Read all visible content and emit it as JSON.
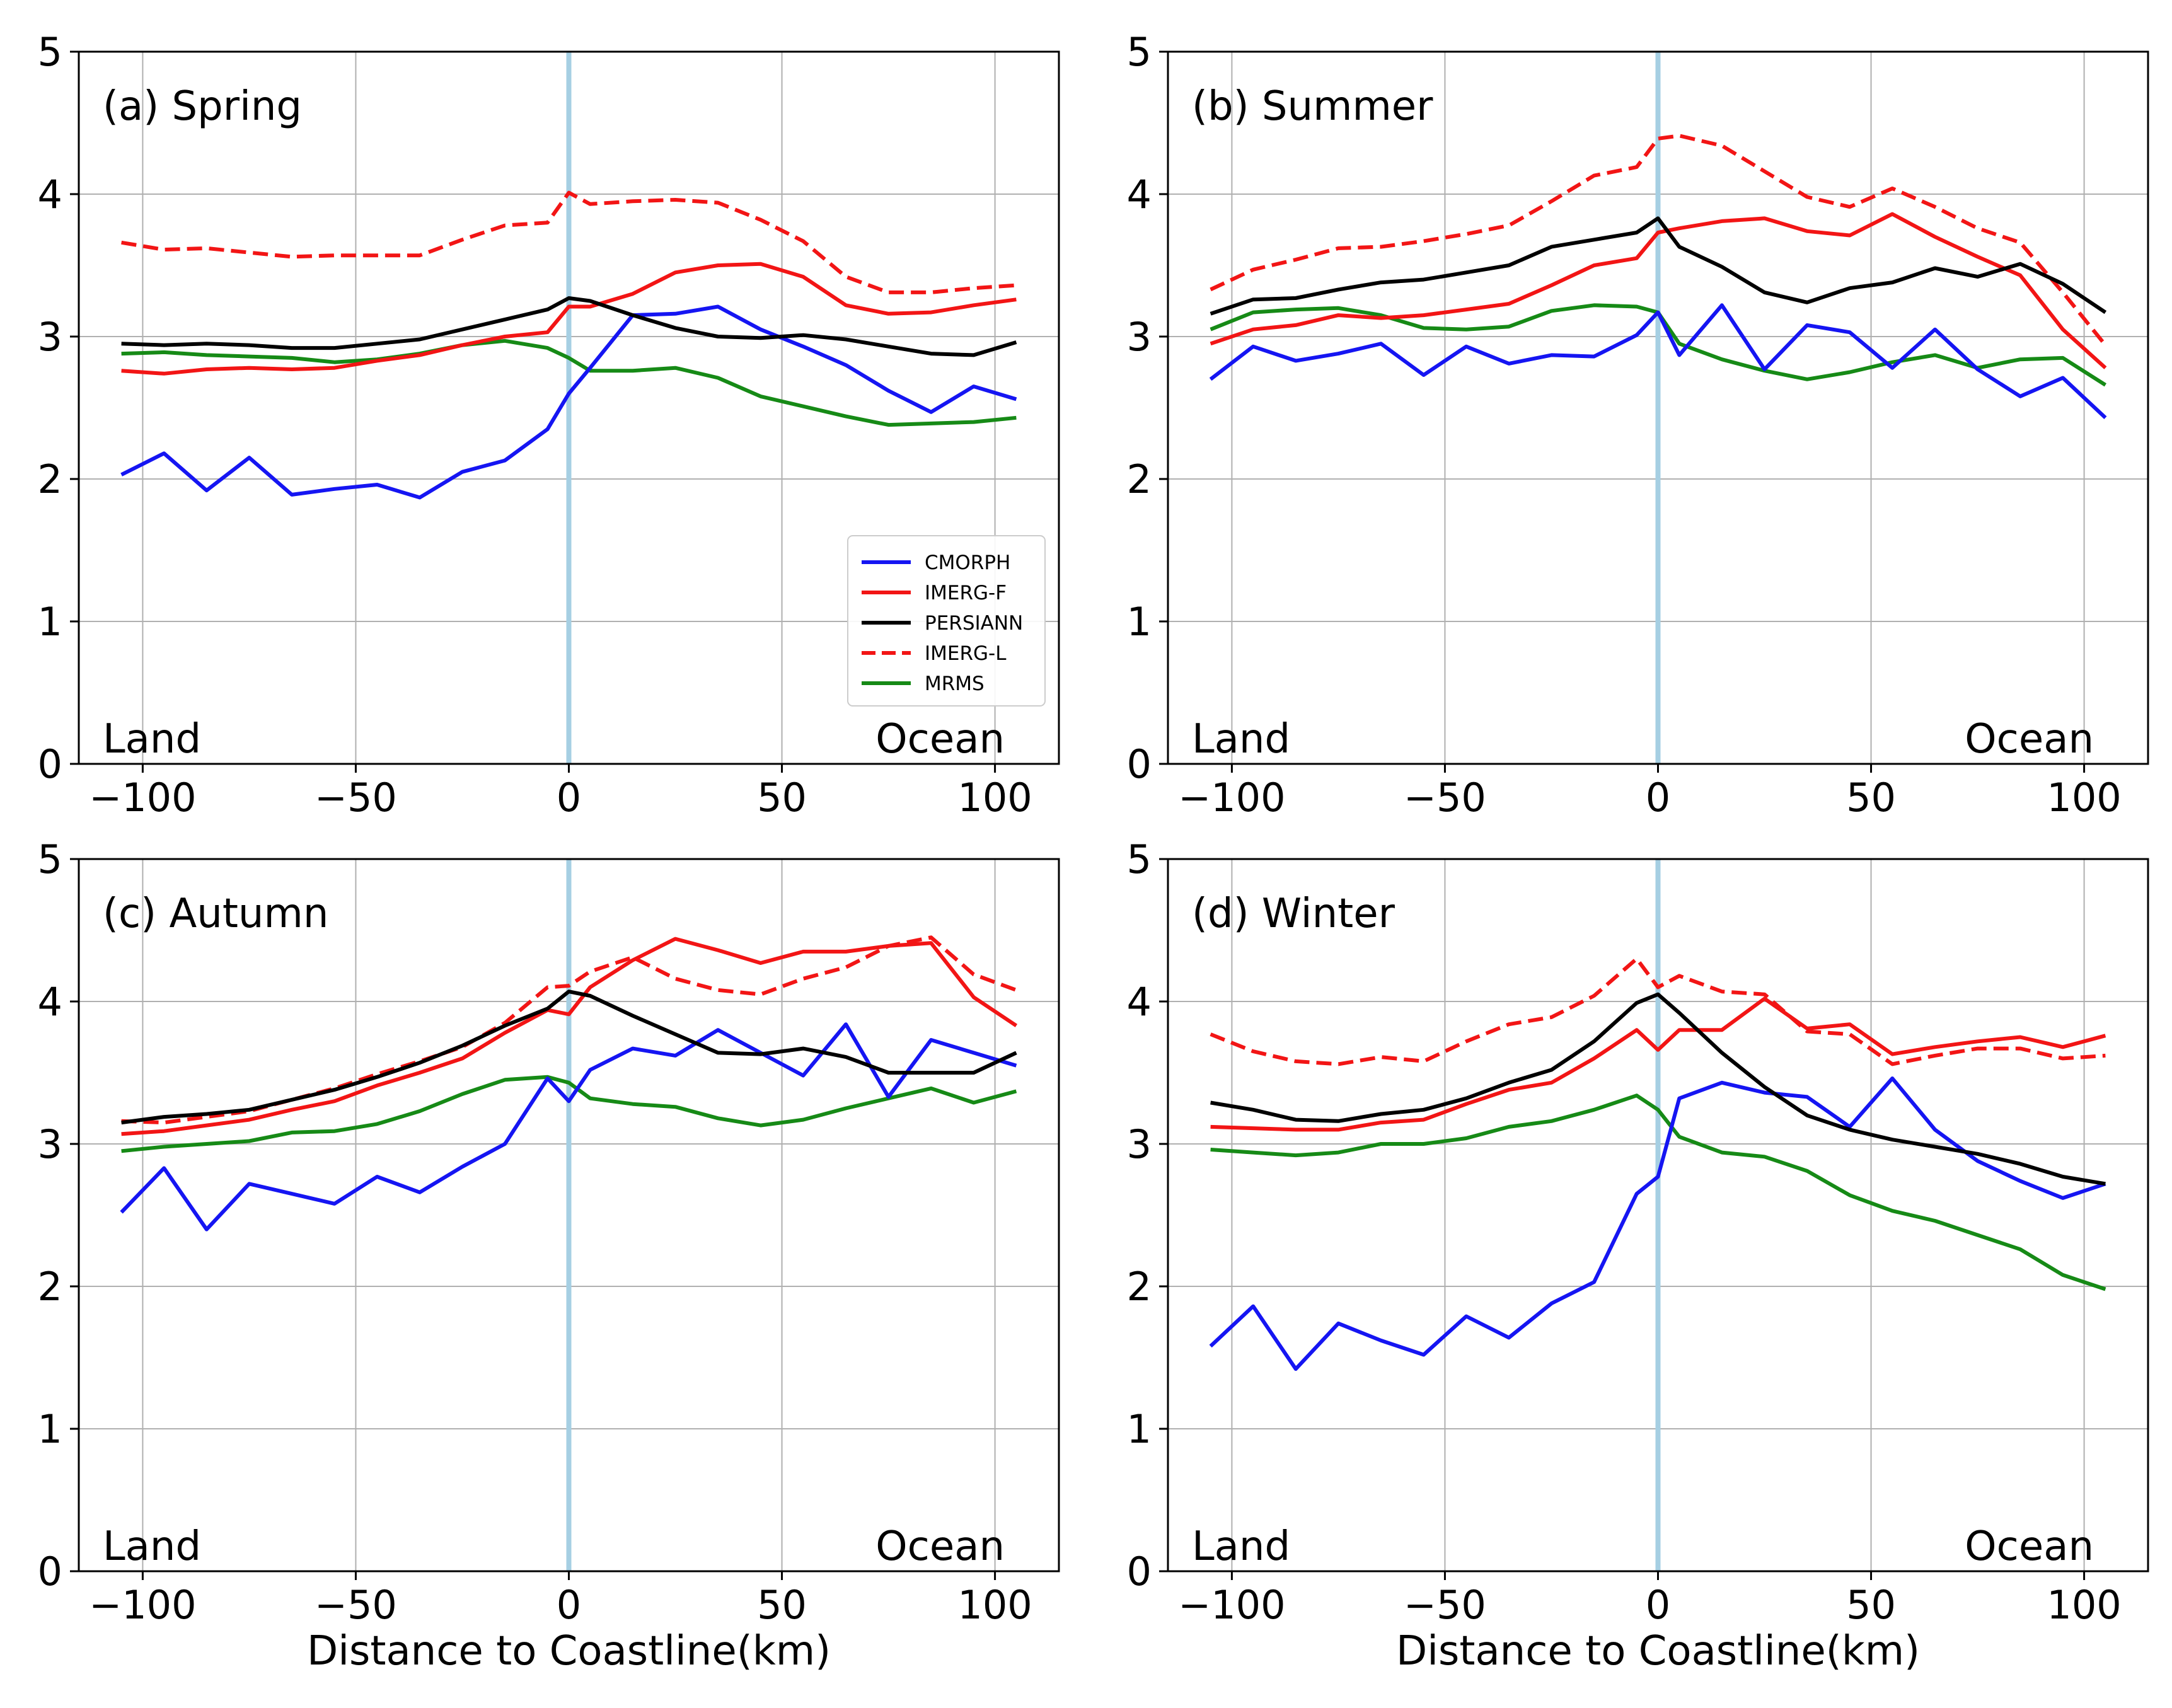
{
  "chart_data": [
    {
      "type": "line",
      "title": "(a) Spring",
      "xlabel": "",
      "ylabel": "",
      "xlim": [
        -115,
        115
      ],
      "ylim": [
        0,
        5
      ],
      "xticks": [
        "−100",
        "−50",
        "0",
        "50",
        "100"
      ],
      "yticks": [
        "0",
        "1",
        "2",
        "3",
        "4",
        "5"
      ],
      "land_label": "Land",
      "ocean_label": "Ocean",
      "x": [
        -105,
        -95,
        -85,
        -75,
        -65,
        -55,
        -45,
        -35,
        -25,
        -15,
        -5,
        0,
        5,
        15,
        25,
        35,
        45,
        55,
        65,
        75,
        85,
        95,
        105
      ],
      "series": [
        {
          "name": "CMORPH",
          "values": [
            2.03,
            2.18,
            1.92,
            2.15,
            1.89,
            1.93,
            1.96,
            1.87,
            2.05,
            2.13,
            2.35,
            2.6,
            2.78,
            3.15,
            3.16,
            3.21,
            3.05,
            2.93,
            2.8,
            2.62,
            2.47,
            2.65,
            2.56
          ]
        },
        {
          "name": "IMERG-F",
          "values": [
            2.76,
            2.74,
            2.77,
            2.78,
            2.77,
            2.78,
            2.83,
            2.87,
            2.94,
            3.0,
            3.03,
            3.21,
            3.21,
            3.3,
            3.45,
            3.5,
            3.51,
            3.42,
            3.22,
            3.16,
            3.17,
            3.22,
            3.26
          ]
        },
        {
          "name": "PERSIANN",
          "values": [
            2.95,
            2.94,
            2.95,
            2.94,
            2.92,
            2.92,
            2.95,
            2.98,
            3.05,
            3.12,
            3.19,
            3.27,
            3.25,
            3.15,
            3.06,
            3.0,
            2.99,
            3.01,
            2.98,
            2.93,
            2.88,
            2.87,
            2.96
          ]
        },
        {
          "name": "IMERG-L",
          "values": [
            3.66,
            3.61,
            3.62,
            3.59,
            3.56,
            3.57,
            3.57,
            3.57,
            3.68,
            3.78,
            3.8,
            4.01,
            3.93,
            3.95,
            3.96,
            3.94,
            3.82,
            3.67,
            3.42,
            3.31,
            3.31,
            3.34,
            3.36
          ]
        },
        {
          "name": "MRMS",
          "values": [
            2.88,
            2.89,
            2.87,
            2.86,
            2.85,
            2.82,
            2.84,
            2.88,
            2.94,
            2.97,
            2.92,
            2.85,
            2.76,
            2.76,
            2.78,
            2.71,
            2.58,
            2.51,
            2.44,
            2.38,
            2.39,
            2.4,
            2.43
          ]
        }
      ]
    },
    {
      "type": "line",
      "title": "(b) Summer",
      "xlabel": "",
      "ylabel": "",
      "xlim": [
        -115,
        115
      ],
      "ylim": [
        0,
        5
      ],
      "xticks": [
        "−100",
        "−50",
        "0",
        "50",
        "100"
      ],
      "yticks": [
        "0",
        "1",
        "2",
        "3",
        "4",
        "5"
      ],
      "land_label": "Land",
      "ocean_label": "Ocean",
      "x": [
        -105,
        -95,
        -85,
        -75,
        -65,
        -55,
        -45,
        -35,
        -25,
        -15,
        -5,
        0,
        5,
        15,
        25,
        35,
        45,
        55,
        65,
        75,
        85,
        95,
        105
      ],
      "series": [
        {
          "name": "CMORPH",
          "values": [
            2.7,
            2.93,
            2.83,
            2.88,
            2.95,
            2.73,
            2.93,
            2.81,
            2.87,
            2.86,
            3.01,
            3.17,
            2.87,
            3.22,
            2.77,
            3.08,
            3.03,
            2.78,
            3.05,
            2.77,
            2.58,
            2.71,
            2.43
          ]
        },
        {
          "name": "IMERG-F",
          "values": [
            2.95,
            3.05,
            3.08,
            3.15,
            3.13,
            3.15,
            3.19,
            3.23,
            3.36,
            3.5,
            3.55,
            3.73,
            3.76,
            3.81,
            3.83,
            3.74,
            3.71,
            3.86,
            3.7,
            3.56,
            3.43,
            3.05,
            2.78
          ]
        },
        {
          "name": "PERSIANN",
          "values": [
            3.16,
            3.26,
            3.27,
            3.33,
            3.38,
            3.4,
            3.45,
            3.5,
            3.63,
            3.68,
            3.73,
            3.83,
            3.63,
            3.49,
            3.31,
            3.24,
            3.34,
            3.38,
            3.48,
            3.42,
            3.51,
            3.37,
            3.17
          ]
        },
        {
          "name": "IMERG-L",
          "values": [
            3.33,
            3.47,
            3.54,
            3.62,
            3.63,
            3.67,
            3.72,
            3.78,
            3.95,
            4.13,
            4.19,
            4.39,
            4.41,
            4.34,
            4.16,
            3.98,
            3.91,
            4.04,
            3.91,
            3.76,
            3.66,
            3.31,
            2.94
          ]
        },
        {
          "name": "MRMS",
          "values": [
            3.05,
            3.17,
            3.19,
            3.2,
            3.15,
            3.06,
            3.05,
            3.07,
            3.18,
            3.22,
            3.21,
            3.17,
            2.95,
            2.84,
            2.76,
            2.7,
            2.75,
            2.82,
            2.87,
            2.78,
            2.84,
            2.85,
            2.66
          ]
        }
      ]
    },
    {
      "type": "line",
      "title": "(c) Autumn",
      "xlabel": "Distance to Coastline(km)",
      "ylabel": "",
      "xlim": [
        -115,
        115
      ],
      "ylim": [
        0,
        5
      ],
      "xticks": [
        "−100",
        "−50",
        "0",
        "50",
        "100"
      ],
      "yticks": [
        "0",
        "1",
        "2",
        "3",
        "4",
        "5"
      ],
      "land_label": "Land",
      "ocean_label": "Ocean",
      "x": [
        -105,
        -95,
        -85,
        -75,
        -65,
        -55,
        -45,
        -35,
        -25,
        -15,
        -5,
        0,
        5,
        15,
        25,
        35,
        45,
        55,
        65,
        75,
        85,
        95,
        105
      ],
      "series": [
        {
          "name": "CMORPH",
          "values": [
            2.52,
            2.83,
            2.4,
            2.72,
            2.65,
            2.58,
            2.77,
            2.66,
            2.84,
            3.0,
            3.46,
            3.3,
            3.52,
            3.67,
            3.62,
            3.8,
            3.64,
            3.48,
            3.84,
            3.33,
            3.73,
            3.64,
            3.55
          ]
        },
        {
          "name": "IMERG-F",
          "values": [
            3.07,
            3.09,
            3.13,
            3.17,
            3.24,
            3.3,
            3.41,
            3.5,
            3.6,
            3.78,
            3.94,
            3.91,
            4.1,
            4.29,
            4.44,
            4.36,
            4.27,
            4.35,
            4.35,
            4.39,
            4.41,
            4.03,
            3.83
          ]
        },
        {
          "name": "PERSIANN",
          "values": [
            3.15,
            3.19,
            3.21,
            3.24,
            3.31,
            3.38,
            3.47,
            3.57,
            3.69,
            3.83,
            3.95,
            4.07,
            4.04,
            3.9,
            3.77,
            3.64,
            3.63,
            3.67,
            3.61,
            3.5,
            3.5,
            3.5,
            3.64
          ]
        },
        {
          "name": "IMERG-L",
          "values": [
            3.16,
            3.15,
            3.19,
            3.23,
            3.31,
            3.39,
            3.49,
            3.58,
            3.68,
            3.85,
            4.1,
            4.11,
            4.21,
            4.31,
            4.16,
            4.08,
            4.05,
            4.16,
            4.24,
            4.39,
            4.45,
            4.19,
            4.08
          ]
        },
        {
          "name": "MRMS",
          "values": [
            2.95,
            2.98,
            3.0,
            3.02,
            3.08,
            3.09,
            3.14,
            3.23,
            3.35,
            3.45,
            3.47,
            3.43,
            3.32,
            3.28,
            3.26,
            3.18,
            3.13,
            3.17,
            3.25,
            3.32,
            3.39,
            3.29,
            3.37
          ]
        }
      ]
    },
    {
      "type": "line",
      "title": "(d) Winter",
      "xlabel": "Distance to Coastline(km)",
      "ylabel": "",
      "xlim": [
        -115,
        115
      ],
      "ylim": [
        0,
        5
      ],
      "xticks": [
        "−100",
        "−50",
        "0",
        "50",
        "100"
      ],
      "yticks": [
        "0",
        "1",
        "2",
        "3",
        "4",
        "5"
      ],
      "land_label": "Land",
      "ocean_label": "Ocean",
      "x": [
        -105,
        -95,
        -85,
        -75,
        -65,
        -55,
        -45,
        -35,
        -25,
        -15,
        -5,
        0,
        5,
        15,
        25,
        35,
        45,
        55,
        65,
        75,
        85,
        95,
        105
      ],
      "series": [
        {
          "name": "CMORPH",
          "values": [
            1.58,
            1.86,
            1.42,
            1.74,
            1.62,
            1.52,
            1.79,
            1.64,
            1.88,
            2.03,
            2.65,
            2.77,
            3.32,
            3.43,
            3.36,
            3.33,
            3.12,
            3.46,
            3.1,
            2.88,
            2.74,
            2.62,
            2.72
          ]
        },
        {
          "name": "IMERG-F",
          "values": [
            3.12,
            3.11,
            3.1,
            3.1,
            3.15,
            3.17,
            3.28,
            3.38,
            3.43,
            3.6,
            3.8,
            3.66,
            3.8,
            3.8,
            4.02,
            3.81,
            3.84,
            3.63,
            3.68,
            3.72,
            3.75,
            3.68,
            3.76
          ]
        },
        {
          "name": "PERSIANN",
          "values": [
            3.29,
            3.24,
            3.17,
            3.16,
            3.21,
            3.24,
            3.32,
            3.43,
            3.52,
            3.72,
            3.99,
            4.05,
            3.92,
            3.64,
            3.4,
            3.2,
            3.1,
            3.03,
            2.98,
            2.93,
            2.86,
            2.77,
            2.72
          ]
        },
        {
          "name": "IMERG-L",
          "values": [
            3.77,
            3.65,
            3.58,
            3.56,
            3.61,
            3.58,
            3.72,
            3.84,
            3.89,
            4.04,
            4.3,
            4.1,
            4.18,
            4.07,
            4.05,
            3.79,
            3.77,
            3.56,
            3.62,
            3.67,
            3.67,
            3.6,
            3.62
          ]
        },
        {
          "name": "MRMS",
          "values": [
            2.96,
            2.94,
            2.92,
            2.94,
            3.0,
            3.0,
            3.04,
            3.12,
            3.16,
            3.24,
            3.34,
            3.24,
            3.05,
            2.94,
            2.91,
            2.81,
            2.64,
            2.53,
            2.46,
            2.36,
            2.26,
            2.08,
            1.98
          ]
        }
      ]
    }
  ],
  "legend": {
    "placement": "lower-right of panel (a)",
    "entries": [
      "CMORPH",
      "IMERG-F",
      "PERSIANN",
      "IMERG-L",
      "MRMS"
    ]
  },
  "colors": {
    "CMORPH": "#1515f2",
    "IMERG-F": "#f21515",
    "PERSIANN": "#000000",
    "IMERG-L": "#f21515",
    "MRMS": "#168a16",
    "coastline": "#a6cfe3",
    "grid": "#b0b0b0"
  },
  "dashed_series": [
    "IMERG-L"
  ]
}
